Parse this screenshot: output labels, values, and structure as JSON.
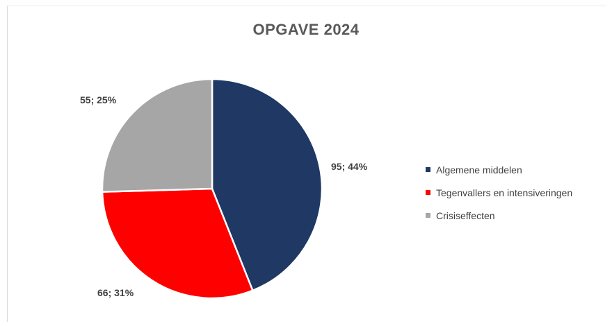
{
  "chart_data": {
    "type": "pie",
    "title": "OPGAVE 2024",
    "slices": [
      {
        "label": "Algemene middelen",
        "value": 95,
        "percent": 44,
        "data_label": "95; 44%",
        "color": "#1f3864"
      },
      {
        "label": "Tegenvallers en intensiveringen",
        "value": 66,
        "percent": 31,
        "data_label": "66; 31%",
        "color": "#ff0000"
      },
      {
        "label": "Crisiseffecten",
        "value": 55,
        "percent": 25,
        "data_label": "55; 25%",
        "color": "#a6a6a6"
      }
    ],
    "legend_position": "right"
  }
}
